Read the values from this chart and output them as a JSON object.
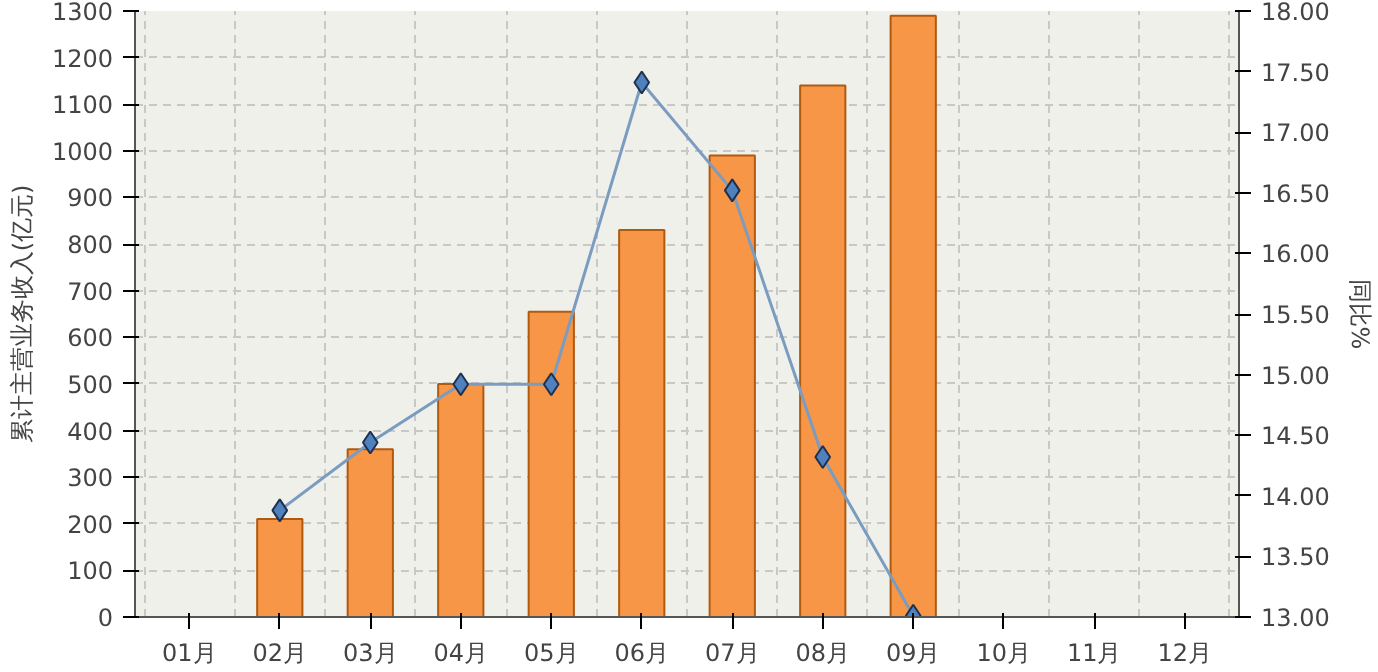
{
  "chart_data": {
    "type": "bar",
    "ylabel": "累计主营业务收入(亿元)",
    "y2label": "同比%",
    "categories": [
      "01月",
      "02月",
      "03月",
      "04月",
      "05月",
      "06月",
      "07月",
      "08月",
      "09月",
      "10月",
      "11月",
      "12月"
    ],
    "series": [
      {
        "color": "#f79646",
        "values": [
          null,
          210,
          360,
          500,
          655,
          830,
          990,
          1140,
          1290,
          null,
          null,
          null
        ]
      },
      {
        "type": "line",
        "axis": "y2",
        "color": "#4f81bd",
        "marker": "diamond",
        "values": [
          null,
          13.88,
          14.44,
          14.92,
          14.92,
          17.41,
          16.52,
          14.32,
          13.01,
          null,
          null,
          null
        ]
      }
    ],
    "ylim": [
      0,
      1300
    ],
    "yticks": [
      0,
      100,
      200,
      300,
      400,
      500,
      600,
      700,
      800,
      900,
      1000,
      1100,
      1200,
      1300
    ],
    "y2lim": [
      13,
      18
    ],
    "y2ticks": [
      {
        "value": 13,
        "label": "13.00"
      },
      {
        "value": 13.5,
        "label": "13.50"
      },
      {
        "value": 14,
        "label": "14.00"
      },
      {
        "value": 14.5,
        "label": "14.50"
      },
      {
        "value": 15,
        "label": "15.00"
      },
      {
        "value": 15.5,
        "label": "15.50"
      },
      {
        "value": 16,
        "label": "16.00"
      },
      {
        "value": 16.5,
        "label": "16.50"
      },
      {
        "value": 17,
        "label": "17.00"
      },
      {
        "value": 17.5,
        "label": "17.50"
      },
      {
        "value": 18,
        "label": "18.00"
      }
    ],
    "grid": true
  }
}
